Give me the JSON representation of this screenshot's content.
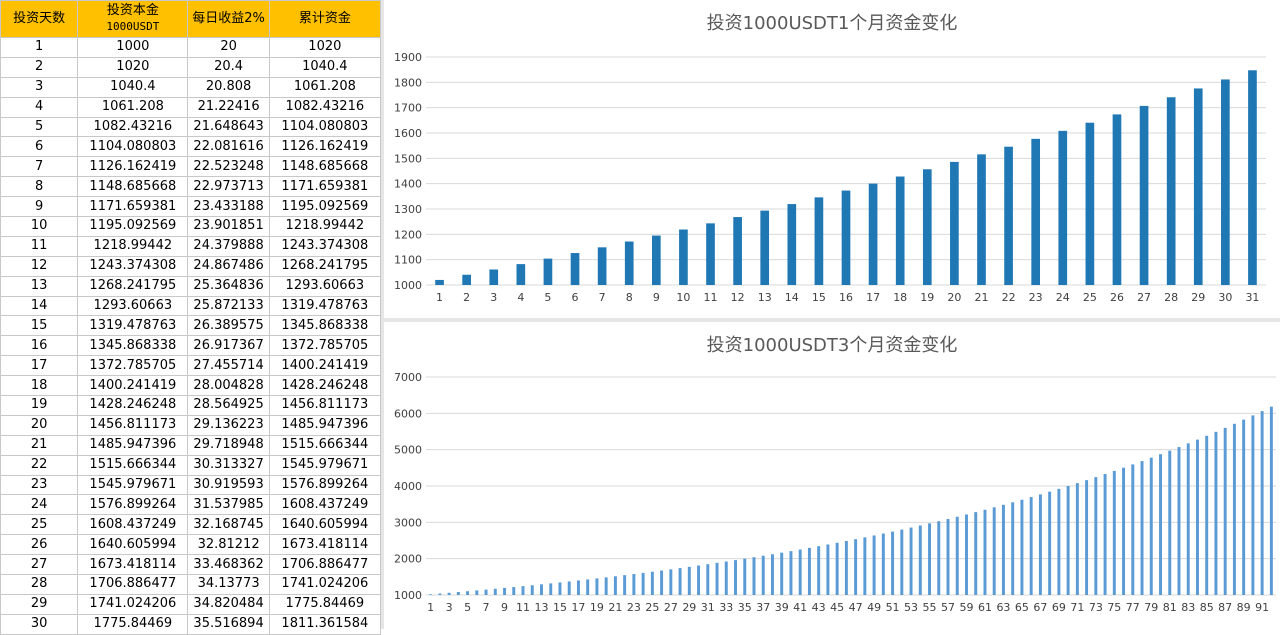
{
  "sheet": {
    "headers": [
      {
        "text": "投资天数"
      },
      {
        "line1": "投资本金",
        "line2": "1000USDT"
      },
      {
        "text": "每日收益2%"
      },
      {
        "text": "累计资金"
      }
    ],
    "rows": [
      [
        "1",
        "1000",
        "20",
        "1020"
      ],
      [
        "2",
        "1020",
        "20.4",
        "1040.4"
      ],
      [
        "3",
        "1040.4",
        "20.808",
        "1061.208"
      ],
      [
        "4",
        "1061.208",
        "21.22416",
        "1082.43216"
      ],
      [
        "5",
        "1082.43216",
        "21.648643",
        "1104.080803"
      ],
      [
        "6",
        "1104.080803",
        "22.081616",
        "1126.162419"
      ],
      [
        "7",
        "1126.162419",
        "22.523248",
        "1148.685668"
      ],
      [
        "8",
        "1148.685668",
        "22.973713",
        "1171.659381"
      ],
      [
        "9",
        "1171.659381",
        "23.433188",
        "1195.092569"
      ],
      [
        "10",
        "1195.092569",
        "23.901851",
        "1218.99442"
      ],
      [
        "11",
        "1218.99442",
        "24.379888",
        "1243.374308"
      ],
      [
        "12",
        "1243.374308",
        "24.867486",
        "1268.241795"
      ],
      [
        "13",
        "1268.241795",
        "25.364836",
        "1293.60663"
      ],
      [
        "14",
        "1293.60663",
        "25.872133",
        "1319.478763"
      ],
      [
        "15",
        "1319.478763",
        "26.389575",
        "1345.868338"
      ],
      [
        "16",
        "1345.868338",
        "26.917367",
        "1372.785705"
      ],
      [
        "17",
        "1372.785705",
        "27.455714",
        "1400.241419"
      ],
      [
        "18",
        "1400.241419",
        "28.004828",
        "1428.246248"
      ],
      [
        "19",
        "1428.246248",
        "28.564925",
        "1456.811173"
      ],
      [
        "20",
        "1456.811173",
        "29.136223",
        "1485.947396"
      ],
      [
        "21",
        "1485.947396",
        "29.718948",
        "1515.666344"
      ],
      [
        "22",
        "1515.666344",
        "30.313327",
        "1545.979671"
      ],
      [
        "23",
        "1545.979671",
        "30.919593",
        "1576.899264"
      ],
      [
        "24",
        "1576.899264",
        "31.537985",
        "1608.437249"
      ],
      [
        "25",
        "1608.437249",
        "32.168745",
        "1640.605994"
      ],
      [
        "26",
        "1640.605994",
        "32.81212",
        "1673.418114"
      ],
      [
        "27",
        "1673.418114",
        "33.468362",
        "1706.886477"
      ],
      [
        "28",
        "1706.886477",
        "34.13773",
        "1741.024206"
      ],
      [
        "29",
        "1741.024206",
        "34.820484",
        "1775.84469"
      ],
      [
        "30",
        "1775.84469",
        "35.516894",
        "1811.361584"
      ]
    ],
    "colors": {
      "header_bg": "#ffc000",
      "grid": "#c8c8c8"
    }
  },
  "chart_data": [
    {
      "type": "bar",
      "title": "投资1000USDT1个月资金变化",
      "color": "#1f77b4",
      "base": 1000,
      "rate": 0.02,
      "count": 31,
      "ylim": [
        1000,
        1900
      ],
      "yticks": [
        1000,
        1100,
        1200,
        1300,
        1400,
        1500,
        1600,
        1700,
        1800,
        1900
      ],
      "xlabel_step": 1,
      "grid": true,
      "legend": "none"
    },
    {
      "type": "bar",
      "title": "投资1000USDT3个月资金变化",
      "color": "#5b9bd5",
      "base": 1000,
      "rate": 0.02,
      "count": 92,
      "ylim": [
        1000,
        7000
      ],
      "yticks": [
        1000,
        2000,
        3000,
        4000,
        5000,
        6000,
        7000
      ],
      "xlabel_step": 2,
      "grid": true,
      "legend": "none"
    }
  ]
}
